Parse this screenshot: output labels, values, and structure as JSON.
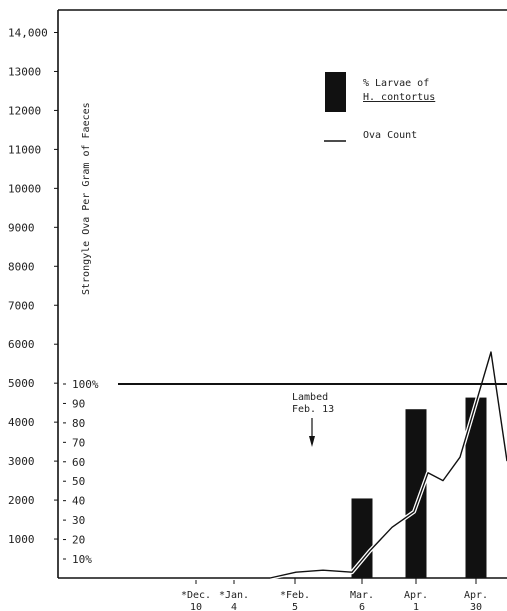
{
  "chart_data": {
    "type": "bar",
    "ylabel": "Strongyle Ova Per Gram of Faeces",
    "ylim": [
      0,
      14000
    ],
    "yticks": [
      "1000",
      "2000",
      "3000",
      "4000",
      "5000",
      "6000",
      "7000",
      "8000",
      "9000",
      "10000",
      "11000",
      "12000",
      "13000",
      "14,000"
    ],
    "percent_ticks": [
      "10%",
      "20",
      "30",
      "40",
      "50",
      "60",
      "70",
      "80",
      "90",
      "100%"
    ],
    "x_tick_labels": [
      {
        "top": "*Dec.",
        "bottom": "10"
      },
      {
        "top": "*Jan.",
        "bottom": "4"
      },
      {
        "top": "*Feb.",
        "bottom": "5"
      },
      {
        "top": "Mar.",
        "bottom": "6"
      },
      {
        "top": "Apr.",
        "bottom": "1"
      },
      {
        "top": "Apr.",
        "bottom": "30"
      }
    ],
    "legend": {
      "bar_label_line1": "% Larvae of",
      "bar_label_line2": "H. contortus",
      "line_label": "Ova Count"
    },
    "annotation": {
      "line1": "Lambed",
      "line2": "Feb. 13"
    },
    "reference_line_percent": 100,
    "series": [
      {
        "name": "% Larvae of H. contortus",
        "kind": "bar",
        "percent_values": [
          0,
          0,
          0,
          41,
          87,
          93
        ],
        "color": "#111111"
      },
      {
        "name": "Ova Count",
        "kind": "line",
        "color": "#111111",
        "points": [
          {
            "x": "Dec. 10",
            "y": 0
          },
          {
            "x": "Jan. 4",
            "y": 0
          },
          {
            "x": "Feb. 5",
            "y": 0
          },
          {
            "x": "Feb. 13",
            "y": 150
          },
          {
            "x": "Feb. 25",
            "y": 200
          },
          {
            "x": "Mar. 6",
            "y": 150
          },
          {
            "x": "Mar. 13",
            "y": 700
          },
          {
            "x": "Mar. 20",
            "y": 1300
          },
          {
            "x": "Apr. 1",
            "y": 1700
          },
          {
            "x": "Apr. 8",
            "y": 2700
          },
          {
            "x": "Apr. 13",
            "y": 2500
          },
          {
            "x": "Apr. 18",
            "y": 3100
          },
          {
            "x": "Apr. 30",
            "y": 5800
          },
          {
            "x": "May 5",
            "y": 3000
          }
        ]
      }
    ]
  }
}
